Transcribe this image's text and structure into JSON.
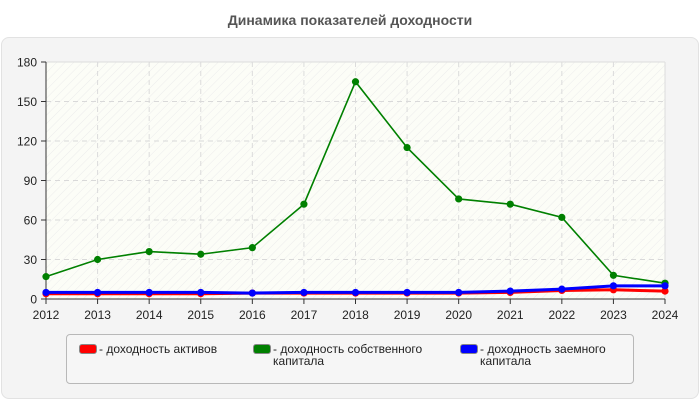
{
  "title": "Динамика показателей доходности",
  "chart_data": {
    "type": "line",
    "title": "Динамика показателей доходности",
    "xlabel": "",
    "ylabel": "",
    "x": [
      2012,
      2013,
      2014,
      2015,
      2016,
      2017,
      2018,
      2019,
      2020,
      2021,
      2022,
      2023,
      2024
    ],
    "ylim": [
      0,
      180
    ],
    "yticks": [
      0,
      30,
      60,
      90,
      120,
      150,
      180
    ],
    "grid": true,
    "legend_position": "bottom",
    "series": [
      {
        "name": "- доходность активов",
        "color": "#ff0000",
        "values": [
          4,
          4,
          4,
          4,
          4.5,
          4.5,
          4.5,
          4.5,
          4.5,
          5,
          6.5,
          7,
          6
        ]
      },
      {
        "name": "- доходность собственного капитала",
        "color": "#008000",
        "values": [
          17,
          30,
          36,
          34,
          39,
          72,
          165,
          115,
          76,
          72,
          62,
          18,
          12
        ]
      },
      {
        "name": "- доходность заемного капитала",
        "color": "#0000ff",
        "values": [
          5,
          5,
          5,
          5,
          4.5,
          5,
          5,
          5,
          5,
          6,
          7.5,
          10,
          10
        ]
      }
    ]
  },
  "legend": {
    "items": [
      {
        "label": "- доходность активов",
        "color": "#ff0000"
      },
      {
        "label": "- доходность собственного капитала",
        "color": "#008000"
      },
      {
        "label": "- доходность заемного капитала",
        "color": "#0000ff"
      }
    ]
  }
}
